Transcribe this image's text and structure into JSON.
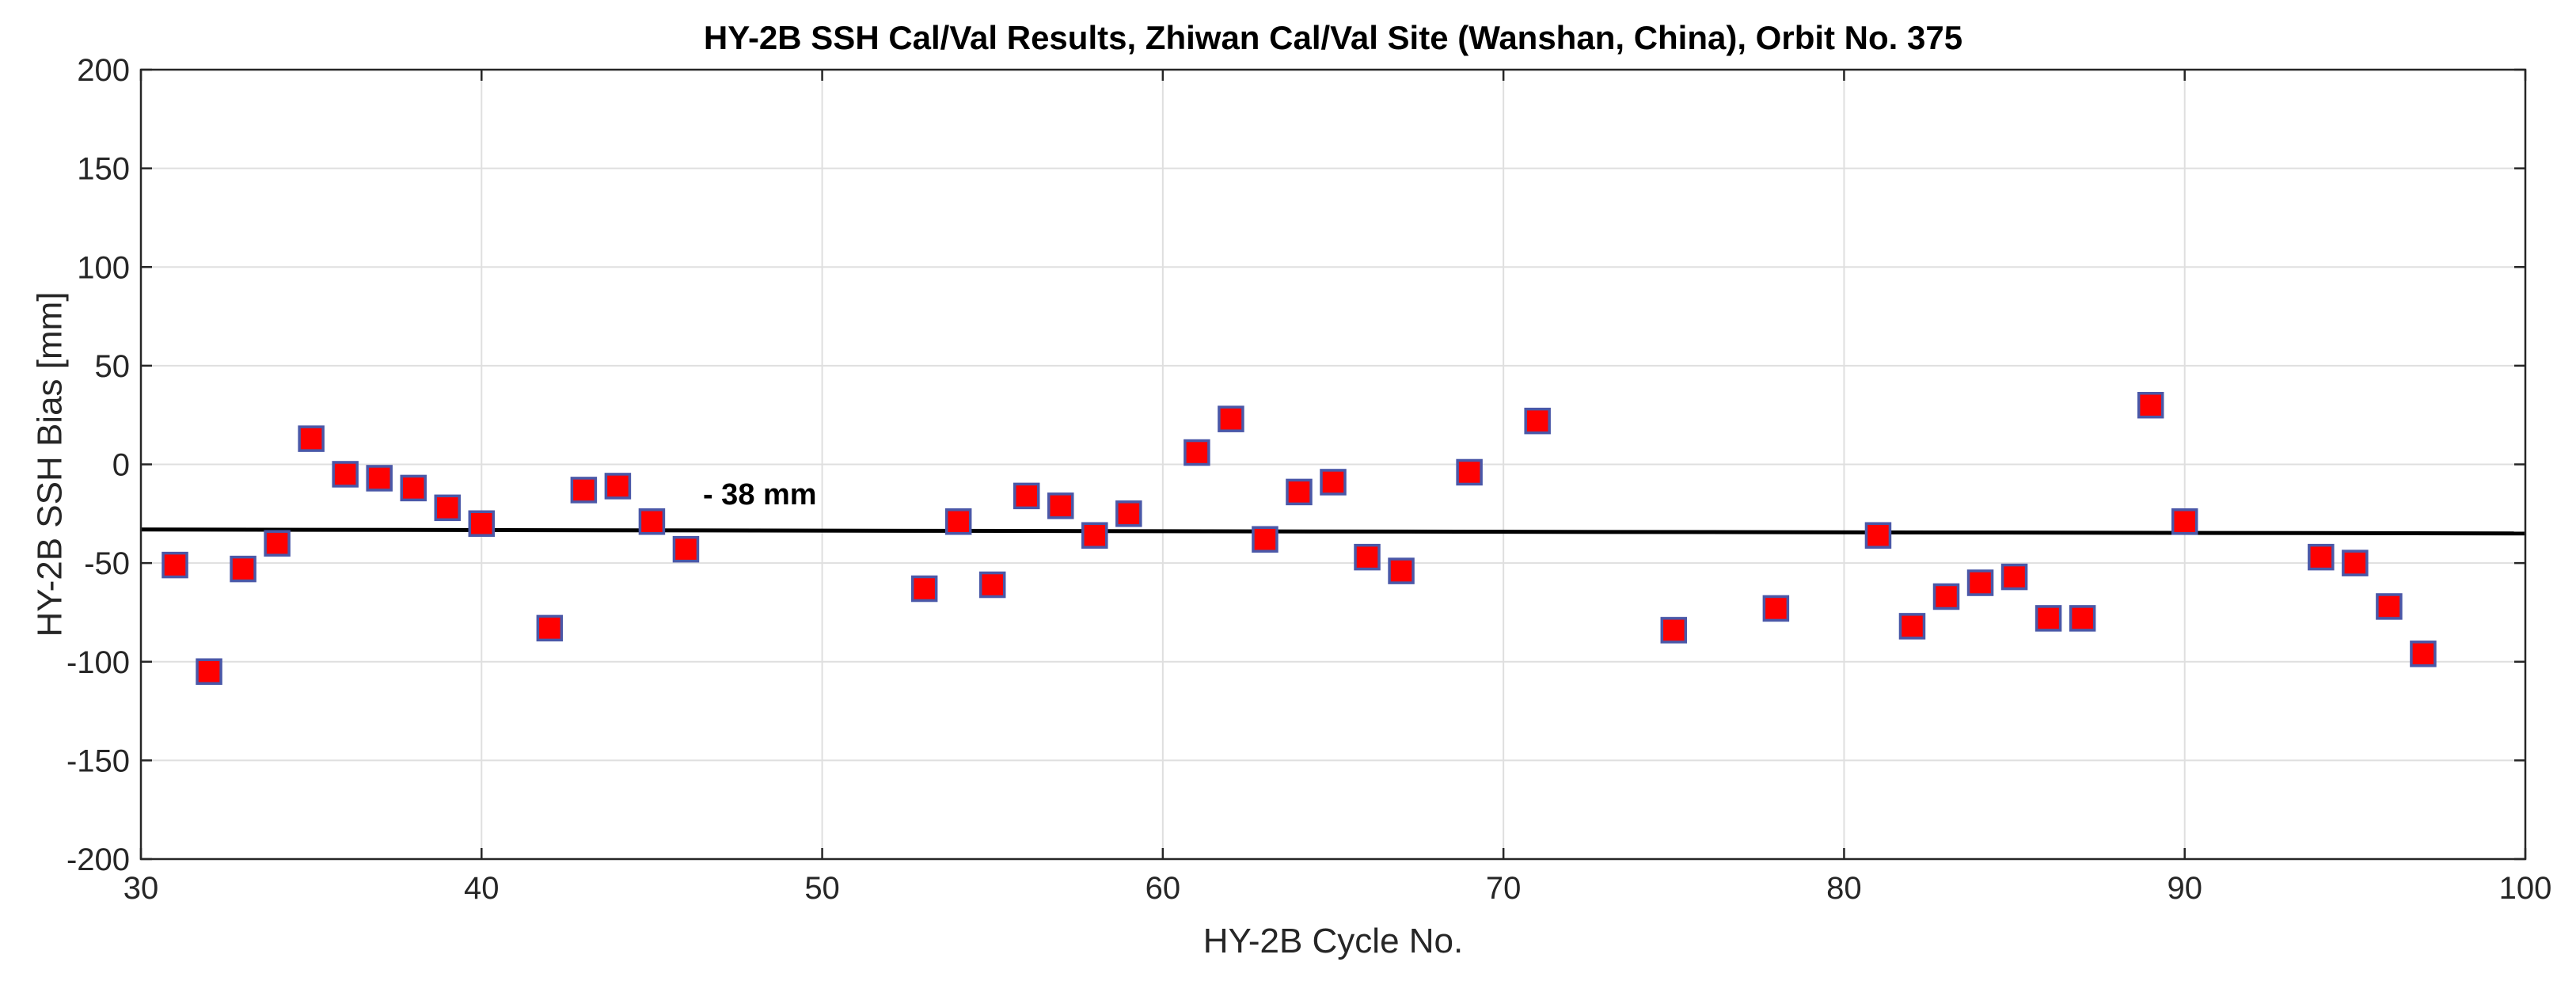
{
  "chart_data": {
    "type": "scatter",
    "title": "HY-2B SSH Cal/Val Results, Zhiwan Cal/Val Site (Wanshan, China), Orbit No. 375",
    "xlabel": "HY-2B Cycle No.",
    "ylabel": "HY-2B SSH Bias [mm]",
    "xlim": [
      30,
      100
    ],
    "ylim": [
      -200,
      200
    ],
    "xticks": [
      30,
      40,
      50,
      60,
      70,
      80,
      90,
      100
    ],
    "yticks": [
      -200,
      -150,
      -100,
      -50,
      0,
      50,
      100,
      150,
      200
    ],
    "grid": true,
    "marker_color": "#ff0000",
    "marker_edge_color": "#4a58a8",
    "line_color": "#000000",
    "points": [
      {
        "x": 31,
        "y": -51
      },
      {
        "x": 32,
        "y": -105
      },
      {
        "x": 33,
        "y": -53
      },
      {
        "x": 34,
        "y": -40
      },
      {
        "x": 35,
        "y": 13
      },
      {
        "x": 36,
        "y": -5
      },
      {
        "x": 37,
        "y": -7
      },
      {
        "x": 38,
        "y": -12
      },
      {
        "x": 39,
        "y": -22
      },
      {
        "x": 40,
        "y": -30
      },
      {
        "x": 42,
        "y": -83
      },
      {
        "x": 43,
        "y": -13
      },
      {
        "x": 44,
        "y": -11
      },
      {
        "x": 45,
        "y": -29
      },
      {
        "x": 46,
        "y": -43
      },
      {
        "x": 53,
        "y": -63
      },
      {
        "x": 54,
        "y": -29
      },
      {
        "x": 55,
        "y": -61
      },
      {
        "x": 56,
        "y": -16
      },
      {
        "x": 57,
        "y": -21
      },
      {
        "x": 58,
        "y": -36
      },
      {
        "x": 59,
        "y": -25
      },
      {
        "x": 61,
        "y": 6
      },
      {
        "x": 62,
        "y": 23
      },
      {
        "x": 63,
        "y": -38
      },
      {
        "x": 64,
        "y": -14
      },
      {
        "x": 65,
        "y": -9
      },
      {
        "x": 66,
        "y": -47
      },
      {
        "x": 67,
        "y": -54
      },
      {
        "x": 69,
        "y": -4
      },
      {
        "x": 71,
        "y": 22
      },
      {
        "x": 75,
        "y": -84
      },
      {
        "x": 78,
        "y": -73
      },
      {
        "x": 81,
        "y": -36
      },
      {
        "x": 82,
        "y": -82
      },
      {
        "x": 83,
        "y": -67
      },
      {
        "x": 84,
        "y": -60
      },
      {
        "x": 85,
        "y": -57
      },
      {
        "x": 86,
        "y": -78
      },
      {
        "x": 87,
        "y": -78
      },
      {
        "x": 89,
        "y": 30
      },
      {
        "x": 90,
        "y": -29
      },
      {
        "x": 94,
        "y": -47
      },
      {
        "x": 95,
        "y": -50
      },
      {
        "x": 96,
        "y": -72
      },
      {
        "x": 97,
        "y": -96
      }
    ],
    "trend_line": {
      "x": [
        30,
        100
      ],
      "y": [
        -33,
        -35
      ]
    },
    "annotations": [
      {
        "text": "- 38 mm",
        "x": 46.5,
        "y": -15
      }
    ]
  }
}
